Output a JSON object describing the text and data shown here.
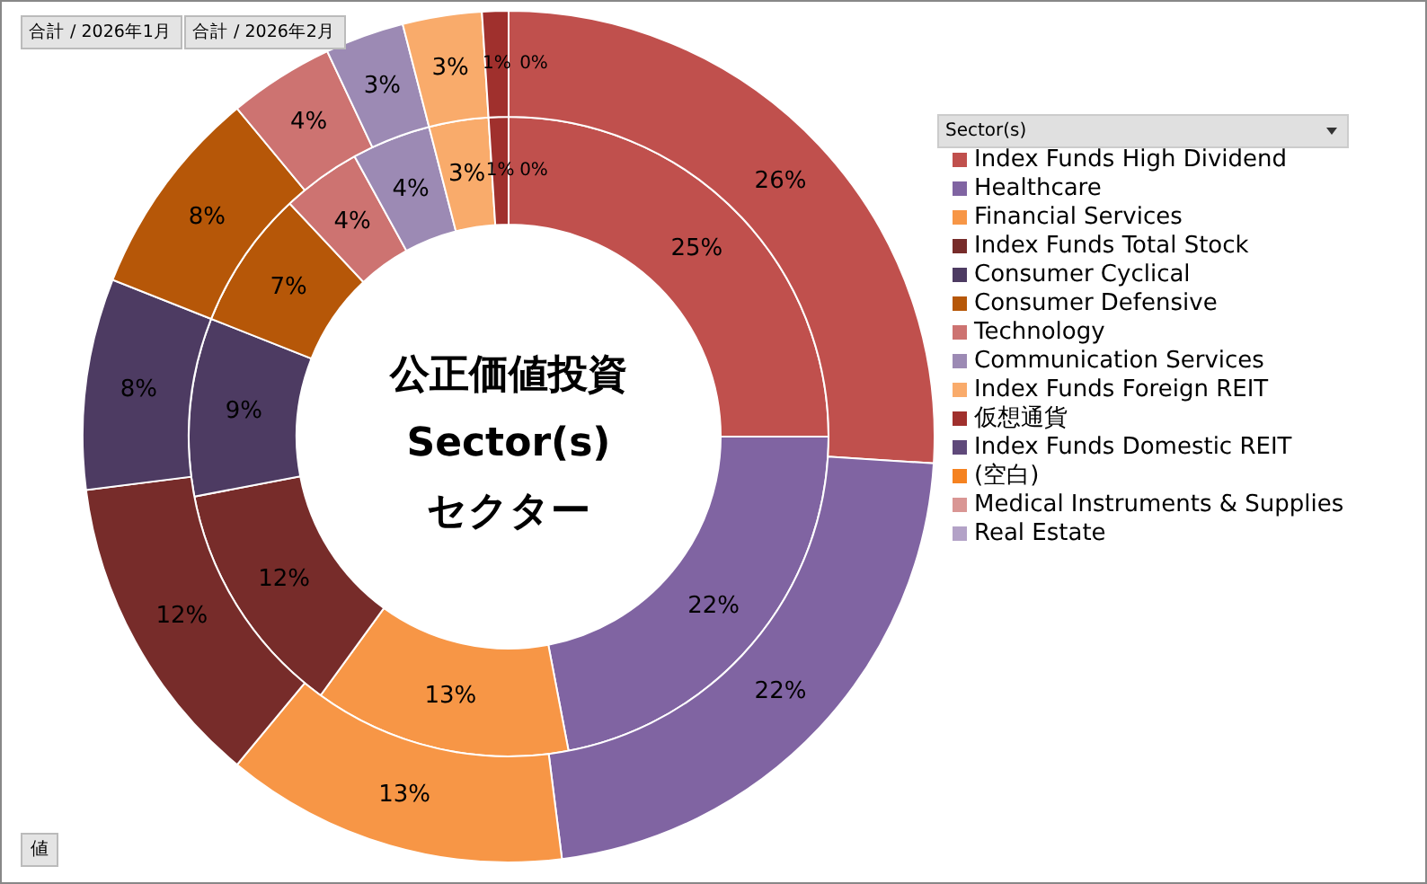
{
  "chart_data": {
    "type": "donut",
    "legend_title": "Sector(s)",
    "legend": "right",
    "annotations": [
      "公正価値投資",
      "Sector(s)",
      "セクター",
      "値",
      "合計 / 2026年1月",
      "合計 / 2026年2月"
    ],
    "categories": [
      "Index Funds High Dividend",
      "Healthcare",
      "Financial Services",
      "Index Funds Total Stock",
      "Consumer Cyclical",
      "Consumer Defensive",
      "Technology",
      "Communication Services",
      "Index Funds Foreign REIT",
      "仮想通貨",
      "Index Funds Domestic REIT",
      "(空白)",
      "Medical Instruments & Supplies",
      "Real Estate"
    ],
    "colors": [
      "#c0504d",
      "#8064a2",
      "#f79646",
      "#772c2a",
      "#4d3b62",
      "#b65708",
      "#cd7371",
      "#9c8ab4",
      "#f9ab6b",
      "#a0302d",
      "#5f497a",
      "#f58220",
      "#d99694",
      "#b3a2c7"
    ],
    "series": [
      {
        "values": [
          25,
          22,
          13,
          12,
          9,
          7,
          4,
          4,
          3,
          1,
          0,
          0,
          0,
          0
        ],
        "value_labels": [
          "25%",
          "22%",
          "13%",
          "12%",
          "9%",
          "7%",
          "4%",
          "4%",
          "3%",
          "1%",
          "0%",
          null,
          null,
          null
        ]
      },
      {
        "values": [
          26,
          22,
          13,
          12,
          8,
          8,
          4,
          3,
          3,
          1,
          0,
          0,
          0,
          0
        ],
        "value_labels": [
          "26%",
          "22%",
          "13%",
          "12%",
          "8%",
          "8%",
          "4%",
          "3%",
          "3%",
          "1%",
          "0%",
          null,
          null,
          null
        ]
      }
    ]
  }
}
